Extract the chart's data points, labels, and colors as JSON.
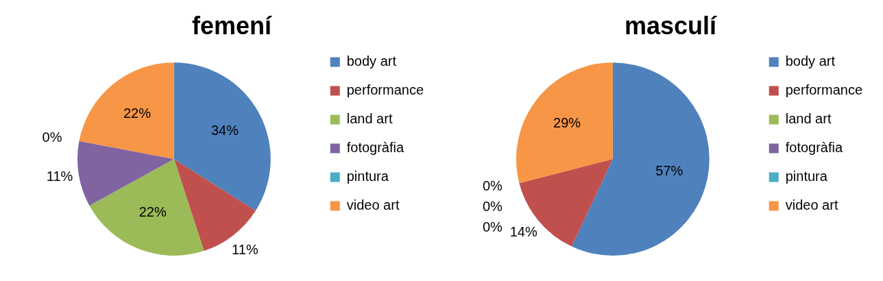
{
  "chart_data": [
    {
      "type": "pie",
      "title": "femení",
      "categories": [
        "body art",
        "performance",
        "land art",
        "fotogràfia",
        "pintura",
        "video art"
      ],
      "values": [
        34,
        11,
        22,
        11,
        0,
        22
      ],
      "colors": [
        "#4f81bd",
        "#c0504d",
        "#9bbb59",
        "#8064a2",
        "#4bacc6",
        "#f79646"
      ],
      "value_labels": [
        "34%",
        "11%",
        "22%",
        "11%",
        "0%",
        "22%"
      ],
      "legend": "right"
    },
    {
      "type": "pie",
      "title": "masculí",
      "categories": [
        "body art",
        "performance",
        "land art",
        "fotogràfia",
        "pintura",
        "video art"
      ],
      "values": [
        57,
        14,
        0,
        0,
        0,
        29
      ],
      "colors": [
        "#4f81bd",
        "#c0504d",
        "#9bbb59",
        "#8064a2",
        "#4bacc6",
        "#f79646"
      ],
      "value_labels": [
        "57%",
        "14%",
        "0%",
        "0%",
        "0%",
        "29%"
      ],
      "legend": "right"
    }
  ]
}
